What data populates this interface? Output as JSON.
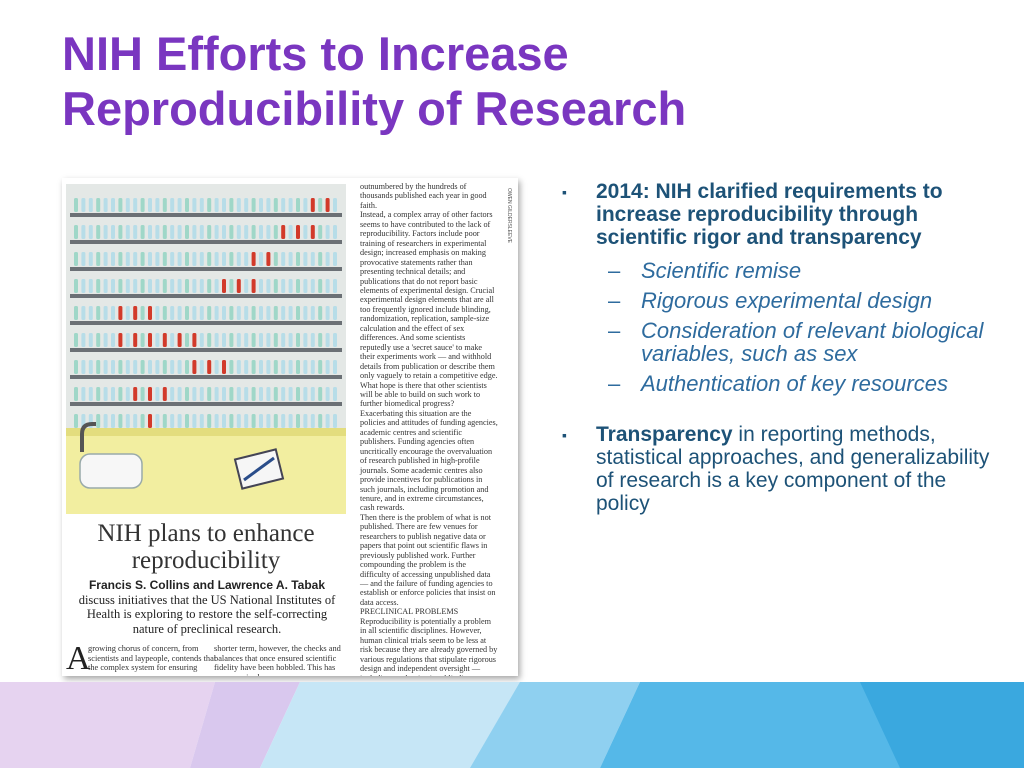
{
  "slide": {
    "title_line1": "NIH Efforts to Increase",
    "title_line2": "Reproducibility of Research"
  },
  "article": {
    "headline": "NIH plans to enhance reproducibility",
    "authors": "Francis S. Collins and Lawrence A. Tabak",
    "standfirst": "discuss initiatives that the US National Institutes of Health is exploring to restore the self-correcting nature of preclinical research.",
    "drop_cap": "A",
    "intro_text": "growing chorus of concern, from scientists and laypeople, contends that the complex system for ensuring",
    "intro_text_2": "shorter term, however, the checks and balances that once ensured scientific fidelity have been hobbled. This has compromised",
    "column_text": "outnumbered by the hundreds of thousands published each year in good faith.\n   Instead, a complex array of other factors seems to have contributed to the lack of reproducibility. Factors include poor training of researchers in experimental design; increased emphasis on making provocative statements rather than presenting technical details; and publications that do not report basic elements of experimental design. Crucial experimental design elements that are all too frequently ignored include blinding, randomization, replication, sample-size calculation and the effect of sex differences. And some scientists reputedly use a 'secret sauce' to make their experiments work — and withhold details from publication or describe them only vaguely to retain a competitive edge. What hope is there that other scientists will be able to build on such work to further biomedical progress?\n   Exacerbating this situation are the policies and attitudes of funding agencies, academic centres and scientific publishers. Funding agencies often uncritically encourage the overvaluation of research published in high-profile journals. Some academic centres also provide incentives for publications in such journals, including promotion and tenure, and in extreme circumstances, cash rewards.\n   Then there is the problem of what is not published. There are few venues for researchers to publish negative data or papers that point out scientific flaws in previously published work. Further compounding the problem is the difficulty of accessing unpublished data — and the failure of funding agencies to establish or enforce policies that insist on data access.\nPRECLINICAL PROBLEMS\nReproducibility is potentially a problem in all scientific disciplines. However, human clinical trials seem to be less at risk because they are already governed by various regulations that stipulate rigorous design and independent oversight — including randomization, blinding, power estimates, pre-registration of outcome measures in standardized, public databases such as ClinicalTrials.gov and oversight by institutional review boards and data safety monitoring boards. Furthermore, the clinical trials community has taken important steps towards adopting standard reporting elements.",
    "side_credit": "OWEN GILDERSLEEVE"
  },
  "bullets": {
    "bullet1": "2014: NIH clarified requirements to increase reproducibility through scientific rigor and transparency",
    "subitems": [
      "Scientific remise",
      "Rigorous experimental design",
      "Consideration of relevant biological variables, such as sex",
      "Authentication of key resources"
    ],
    "bullet2_bold": "Transparency",
    "bullet2_rest": " in reporting methods, statistical approaches, and generalizability of research is a key component of the policy",
    "marker": "▪",
    "dash": "–"
  },
  "colors": {
    "title": "#7a36c0",
    "bullet_text": "#1d5277",
    "sub_text": "#2e6b9e",
    "footer_light": "#c6e6f6",
    "footer_mid": "#55b8e8",
    "footer_lavender": "#e6d3f0"
  }
}
